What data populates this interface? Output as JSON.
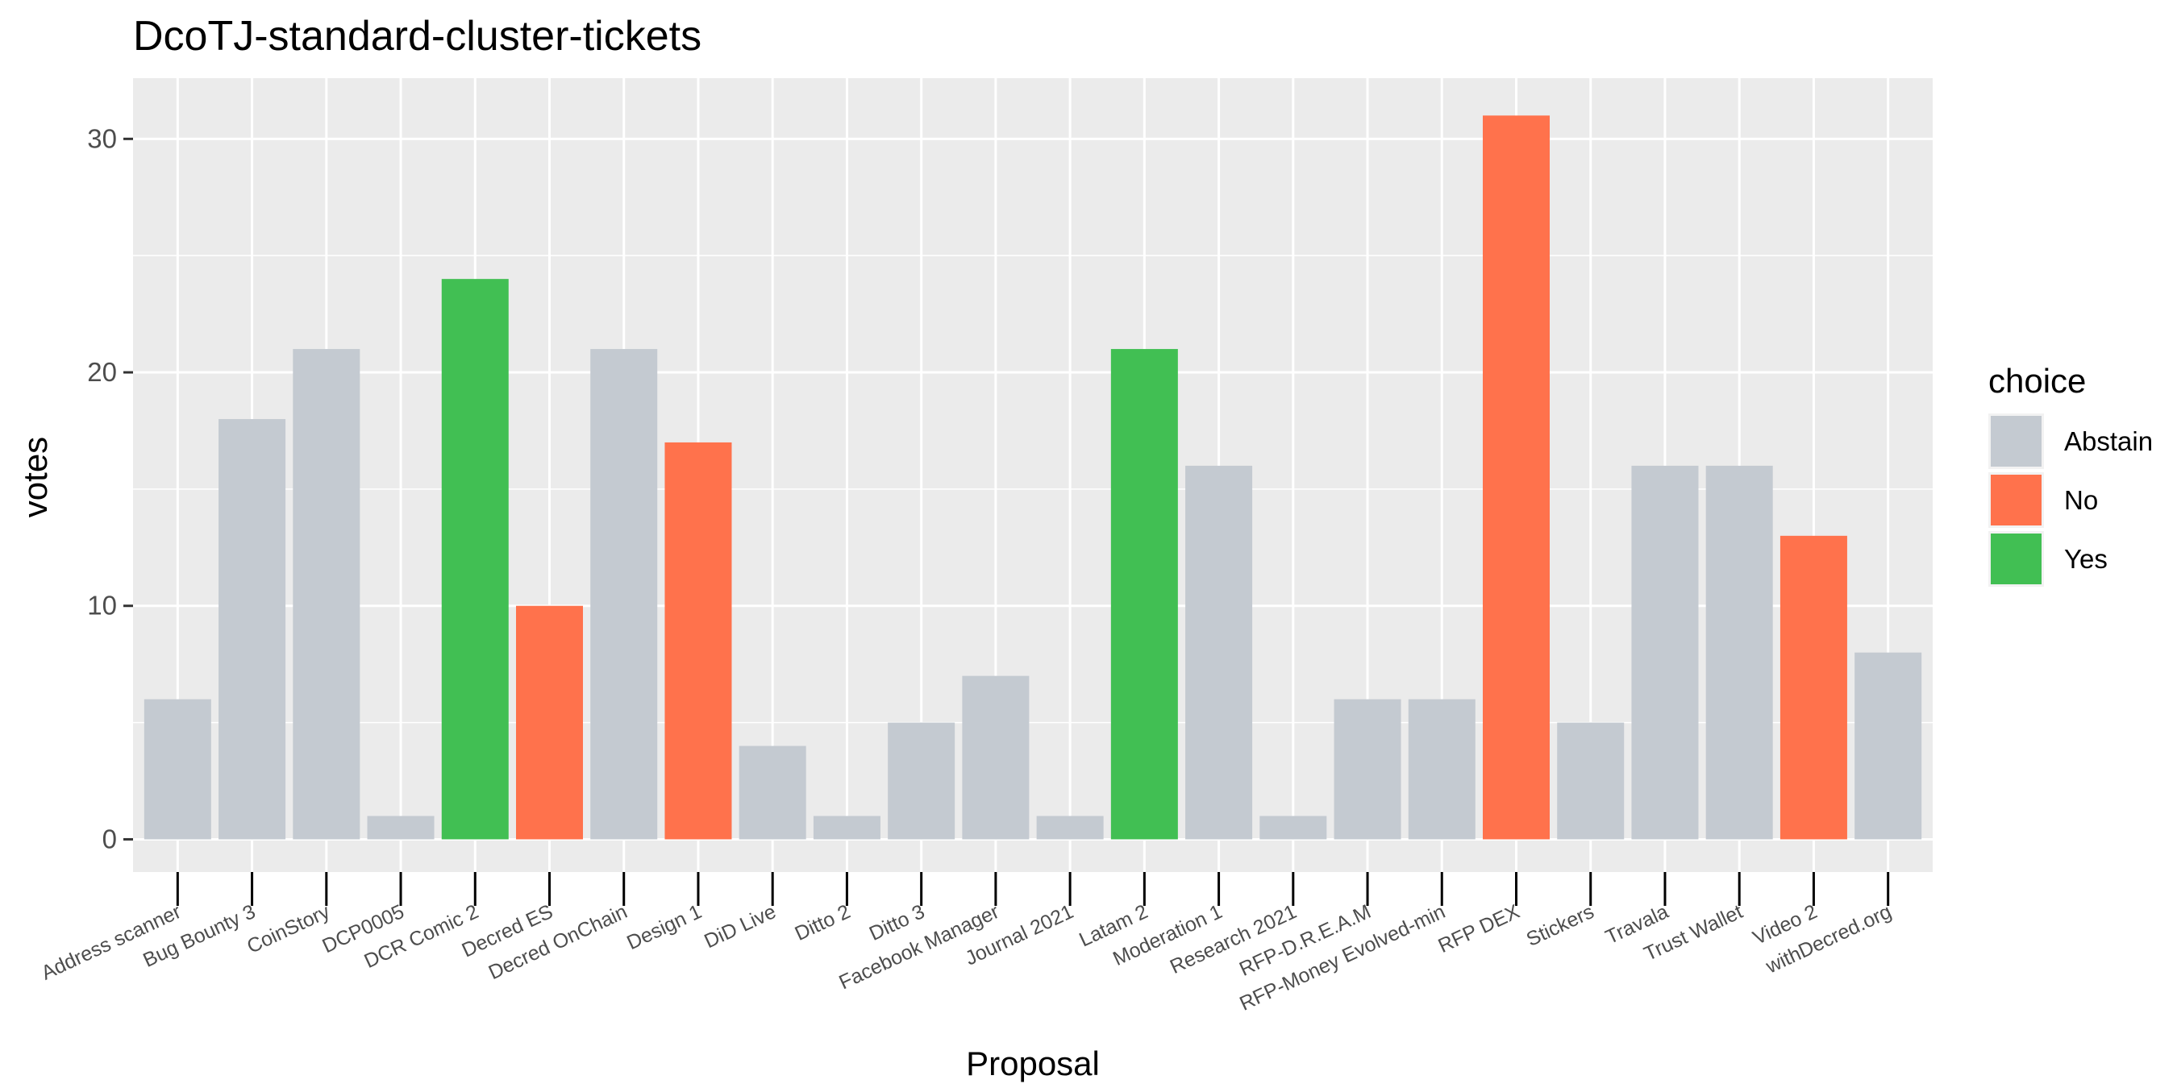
{
  "chart_data": {
    "type": "bar",
    "title": "DcoTJ-standard-cluster-tickets",
    "xlabel": "Proposal",
    "ylabel": "votes",
    "ylim": [
      -1.4,
      32.6
    ],
    "yticks": [
      0,
      10,
      20,
      30
    ],
    "grid": true,
    "legend": {
      "title": "choice",
      "position": "right",
      "entries": [
        {
          "name": "Abstain",
          "color": "#C4CAD1"
        },
        {
          "name": "No",
          "color": "#FF724C"
        },
        {
          "name": "Yes",
          "color": "#41BF53"
        }
      ]
    },
    "categories": [
      "Address scanner",
      "Bug Bounty 3",
      "CoinStory",
      "DCP0005",
      "DCR Comic 2",
      "Decred ES",
      "Decred OnChain",
      "Design 1",
      "DiD Live",
      "Ditto 2",
      "Ditto 3",
      "Facebook Manager",
      "Journal 2021",
      "Latam 2",
      "Moderation 1",
      "Research 2021",
      "RFP-D.R.E.A.M",
      "RFP-Money Evolved-min",
      "RFP DEX",
      "Stickers",
      "Travala",
      "Trust Wallet",
      "Video 2",
      "withDecred.org"
    ],
    "values": [
      6,
      18,
      21,
      1,
      24,
      10,
      21,
      17,
      4,
      1,
      5,
      7,
      1,
      21,
      16,
      1,
      6,
      6,
      31,
      5,
      16,
      16,
      13,
      8
    ],
    "choices": [
      "Abstain",
      "Abstain",
      "Abstain",
      "Abstain",
      "Yes",
      "No",
      "Abstain",
      "No",
      "Abstain",
      "Abstain",
      "Abstain",
      "Abstain",
      "Abstain",
      "Yes",
      "Abstain",
      "Abstain",
      "Abstain",
      "Abstain",
      "No",
      "Abstain",
      "Abstain",
      "Abstain",
      "No",
      "Abstain"
    ]
  }
}
